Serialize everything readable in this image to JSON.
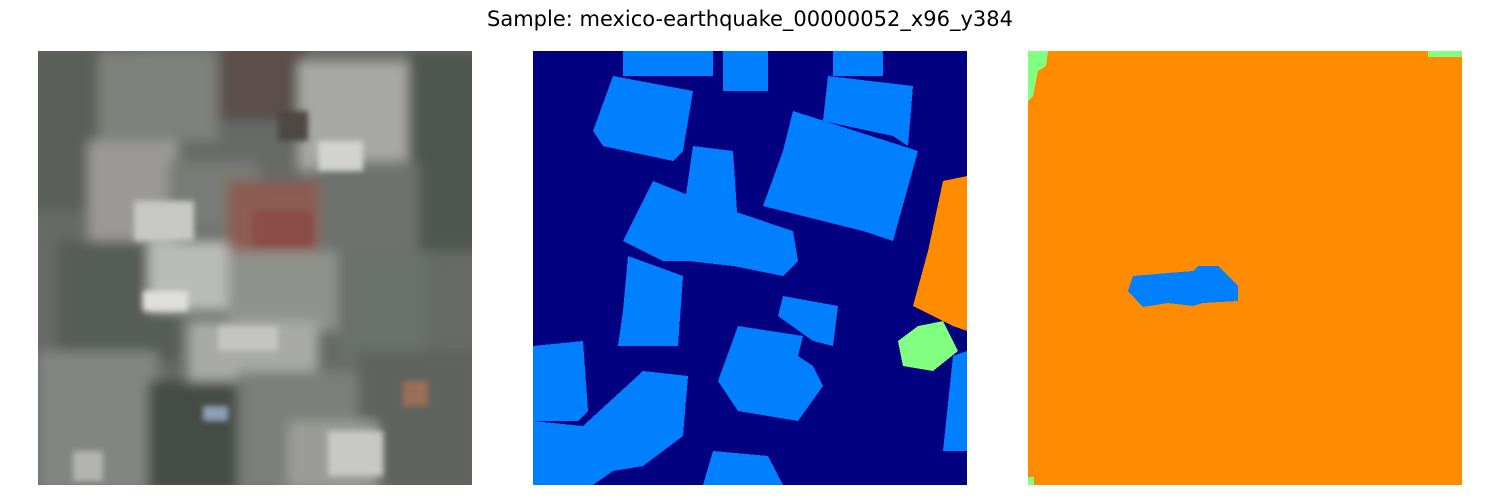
{
  "figure": {
    "title": "Sample: mexico-earthquake_00000052_x96_y384"
  },
  "panels": [
    {
      "kind": "satellite-image",
      "description_colors": [
        "#6b6f6a",
        "#8d8f8a",
        "#4a4f49",
        "#a9aaa6",
        "#8e5d52",
        "#3d443e"
      ]
    },
    {
      "kind": "segmentation-mask",
      "colors": {
        "background": "#000080",
        "building": "#0080ff",
        "damaged": "#ff8c00",
        "minor": "#80ff80"
      }
    },
    {
      "kind": "segmentation-mask",
      "colors": {
        "background": "#ff8c00",
        "building": "#0080ff",
        "minor": "#80ff80"
      }
    }
  ]
}
